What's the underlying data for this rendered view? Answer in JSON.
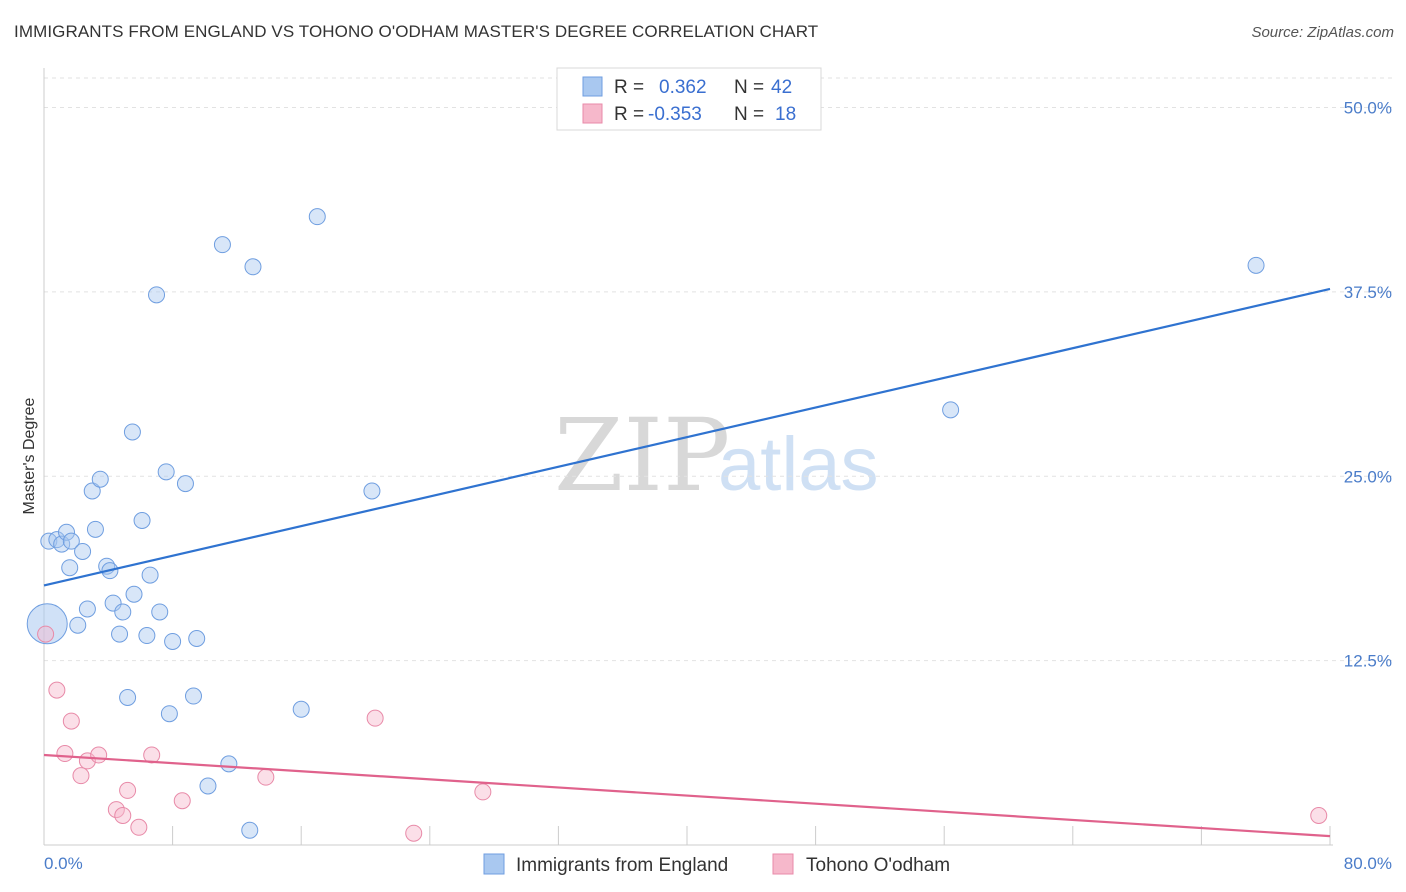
{
  "title": "IMMIGRANTS FROM ENGLAND VS TOHONO O'ODHAM MASTER'S DEGREE CORRELATION CHART",
  "source": "Source: ZipAtlas.com",
  "watermark": {
    "zip": "ZIP",
    "atlas": "atlas"
  },
  "legend": {
    "rows": [
      {
        "r_label": "R =",
        "r_value": "0.362",
        "n_label": "N =",
        "n_value": "42",
        "color": "#a9c8f0"
      },
      {
        "r_label": "R =",
        "r_value": "-0.353",
        "n_label": "N =",
        "n_value": "18",
        "color": "#f6b8cb"
      }
    ]
  },
  "chart_data": {
    "type": "scatter",
    "title": "IMMIGRANTS FROM ENGLAND VS TOHONO O'ODHAM MASTER'S DEGREE CORRELATION CHART",
    "xlabel": "",
    "ylabel": "Master's Degree",
    "xlim": [
      0,
      80
    ],
    "ylim": [
      0,
      52
    ],
    "x_tick_labels": [
      "0.0%",
      "80.0%"
    ],
    "y_ticks": [
      12.5,
      25.0,
      37.5,
      50.0
    ],
    "y_tick_labels": [
      "12.5%",
      "25.0%",
      "37.5%",
      "50.0%"
    ],
    "series": [
      {
        "name": "Immigrants from England",
        "color": "#a9c8f0",
        "stroke": "#6f9ee0",
        "trend_color": "#2f73d0",
        "trend": {
          "x": [
            0,
            80
          ],
          "y": [
            17.6,
            37.7
          ]
        },
        "points": [
          [
            0.3,
            20.6
          ],
          [
            0.8,
            20.7
          ],
          [
            1.1,
            20.4
          ],
          [
            1.4,
            21.2
          ],
          [
            1.6,
            18.8
          ],
          [
            1.7,
            20.6
          ],
          [
            2.1,
            14.9
          ],
          [
            2.4,
            19.9
          ],
          [
            2.7,
            16.0
          ],
          [
            3.0,
            24.0
          ],
          [
            3.2,
            21.4
          ],
          [
            3.5,
            24.8
          ],
          [
            3.9,
            18.9
          ],
          [
            4.1,
            18.6
          ],
          [
            4.3,
            16.4
          ],
          [
            4.7,
            14.3
          ],
          [
            4.9,
            15.8
          ],
          [
            5.2,
            10.0
          ],
          [
            5.5,
            28.0
          ],
          [
            5.6,
            17.0
          ],
          [
            6.1,
            22.0
          ],
          [
            6.4,
            14.2
          ],
          [
            6.6,
            18.3
          ],
          [
            7.0,
            37.3
          ],
          [
            7.2,
            15.8
          ],
          [
            7.6,
            25.3
          ],
          [
            7.8,
            8.9
          ],
          [
            8.0,
            13.8
          ],
          [
            8.8,
            24.5
          ],
          [
            9.3,
            10.1
          ],
          [
            9.5,
            14.0
          ],
          [
            10.2,
            4.0
          ],
          [
            11.1,
            40.7
          ],
          [
            11.5,
            5.5
          ],
          [
            12.8,
            1.0
          ],
          [
            13.0,
            39.2
          ],
          [
            16.0,
            9.2
          ],
          [
            17.0,
            42.6
          ],
          [
            20.4,
            24.0
          ],
          [
            56.4,
            29.5
          ],
          [
            75.4,
            39.3
          ],
          [
            0.2,
            15.0
          ]
        ]
      },
      {
        "name": "Tohono O'odham",
        "color": "#f6b8cb",
        "stroke": "#e88aa8",
        "trend_color": "#e0628c",
        "trend": {
          "x": [
            0,
            80
          ],
          "y": [
            6.1,
            0.6
          ]
        },
        "points": [
          [
            0.1,
            14.3
          ],
          [
            0.8,
            10.5
          ],
          [
            1.3,
            6.2
          ],
          [
            1.7,
            8.4
          ],
          [
            2.3,
            4.7
          ],
          [
            2.7,
            5.7
          ],
          [
            3.4,
            6.1
          ],
          [
            4.5,
            2.4
          ],
          [
            4.9,
            2.0
          ],
          [
            5.2,
            3.7
          ],
          [
            5.9,
            1.2
          ],
          [
            6.7,
            6.1
          ],
          [
            8.6,
            3.0
          ],
          [
            13.8,
            4.6
          ],
          [
            20.6,
            8.6
          ],
          [
            23.0,
            0.8
          ],
          [
            27.3,
            3.6
          ],
          [
            79.3,
            2.0
          ]
        ]
      }
    ]
  }
}
